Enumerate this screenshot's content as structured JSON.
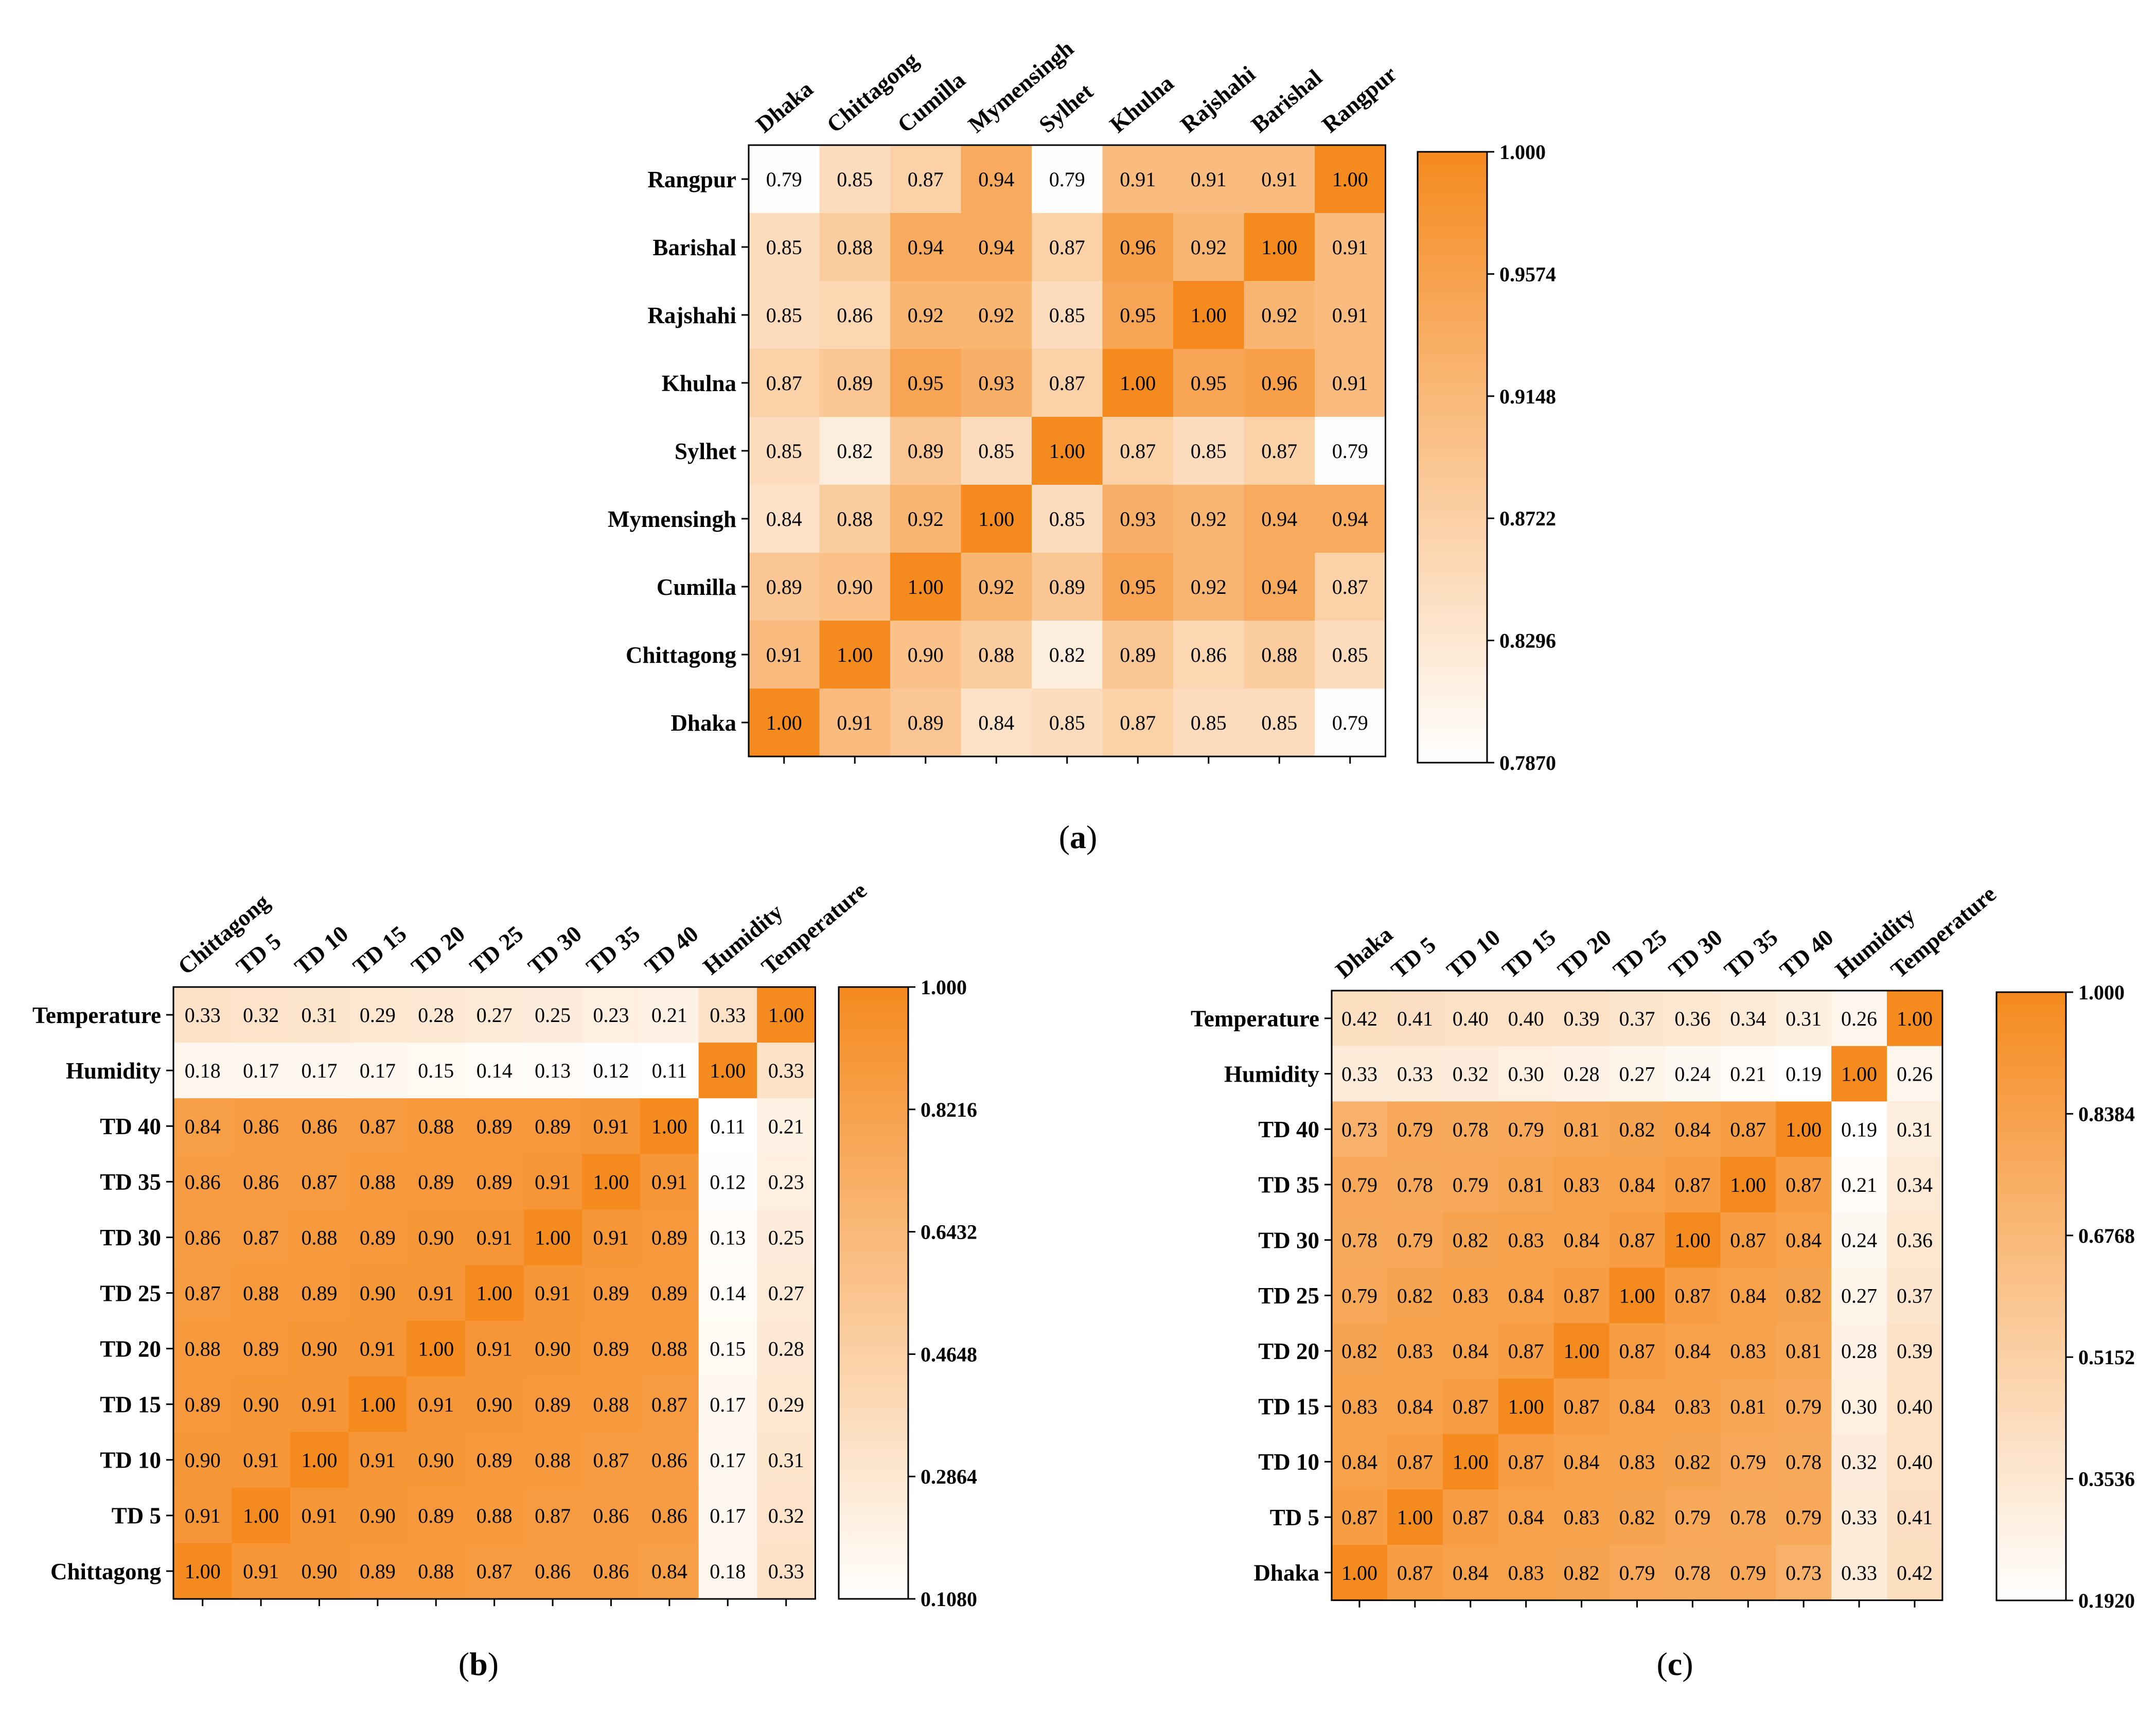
{
  "colors": {
    "low": "#ffffff",
    "high": "#f58a1f",
    "frame": "#000000"
  },
  "chart_data": [
    {
      "type": "heatmap",
      "caption": "a",
      "title": "",
      "columns": [
        "Dhaka",
        "Chittagong",
        "Cumilla",
        "Mymensingh",
        "Sylhet",
        "Khulna",
        "Rajshahi",
        "Barishal",
        "Rangpur"
      ],
      "rows": [
        "Rangpur",
        "Barishal",
        "Rajshahi",
        "Khulna",
        "Sylhet",
        "Mymensingh",
        "Cumilla",
        "Chittagong",
        "Dhaka"
      ],
      "values": [
        [
          0.79,
          0.85,
          0.87,
          0.94,
          0.79,
          0.91,
          0.91,
          0.91,
          1.0
        ],
        [
          0.85,
          0.88,
          0.94,
          0.94,
          0.87,
          0.96,
          0.92,
          1.0,
          0.91
        ],
        [
          0.85,
          0.86,
          0.92,
          0.92,
          0.85,
          0.95,
          1.0,
          0.92,
          0.91
        ],
        [
          0.87,
          0.89,
          0.95,
          0.93,
          0.87,
          1.0,
          0.95,
          0.96,
          0.91
        ],
        [
          0.85,
          0.82,
          0.89,
          0.85,
          1.0,
          0.87,
          0.85,
          0.87,
          0.79
        ],
        [
          0.84,
          0.88,
          0.92,
          1.0,
          0.85,
          0.93,
          0.92,
          0.94,
          0.94
        ],
        [
          0.89,
          0.9,
          1.0,
          0.92,
          0.89,
          0.95,
          0.92,
          0.94,
          0.87
        ],
        [
          0.91,
          1.0,
          0.9,
          0.88,
          0.82,
          0.89,
          0.86,
          0.88,
          0.85
        ],
        [
          1.0,
          0.91,
          0.89,
          0.84,
          0.85,
          0.87,
          0.85,
          0.85,
          0.79
        ]
      ],
      "colorbar": {
        "min": 0.787,
        "max": 1.0,
        "ticks": [
          "1.000",
          "0.9574",
          "0.9148",
          "0.8722",
          "0.8296",
          "0.7870"
        ]
      }
    },
    {
      "type": "heatmap",
      "caption": "b",
      "title": "",
      "columns": [
        "Chittagong",
        "TD 5",
        "TD 10",
        "TD 15",
        "TD 20",
        "TD 25",
        "TD 30",
        "TD 35",
        "TD 40",
        "Humidity",
        "Temperature"
      ],
      "rows": [
        "Temperature",
        "Humidity",
        "TD 40",
        "TD 35",
        "TD 30",
        "TD 25",
        "TD 20",
        "TD 15",
        "TD 10",
        "TD 5",
        "Chittagong"
      ],
      "values": [
        [
          0.33,
          0.32,
          0.31,
          0.29,
          0.28,
          0.27,
          0.25,
          0.23,
          0.21,
          0.33,
          1.0
        ],
        [
          0.18,
          0.17,
          0.17,
          0.17,
          0.15,
          0.14,
          0.13,
          0.12,
          0.11,
          1.0,
          0.33
        ],
        [
          0.84,
          0.86,
          0.86,
          0.87,
          0.88,
          0.89,
          0.89,
          0.91,
          1.0,
          0.11,
          0.21
        ],
        [
          0.86,
          0.86,
          0.87,
          0.88,
          0.89,
          0.89,
          0.91,
          1.0,
          0.91,
          0.12,
          0.23
        ],
        [
          0.86,
          0.87,
          0.88,
          0.89,
          0.9,
          0.91,
          1.0,
          0.91,
          0.89,
          0.13,
          0.25
        ],
        [
          0.87,
          0.88,
          0.89,
          0.9,
          0.91,
          1.0,
          0.91,
          0.89,
          0.89,
          0.14,
          0.27
        ],
        [
          0.88,
          0.89,
          0.9,
          0.91,
          1.0,
          0.91,
          0.9,
          0.89,
          0.88,
          0.15,
          0.28
        ],
        [
          0.89,
          0.9,
          0.91,
          1.0,
          0.91,
          0.9,
          0.89,
          0.88,
          0.87,
          0.17,
          0.29
        ],
        [
          0.9,
          0.91,
          1.0,
          0.91,
          0.9,
          0.89,
          0.88,
          0.87,
          0.86,
          0.17,
          0.31
        ],
        [
          0.91,
          1.0,
          0.91,
          0.9,
          0.89,
          0.88,
          0.87,
          0.86,
          0.86,
          0.17,
          0.32
        ],
        [
          1.0,
          0.91,
          0.9,
          0.89,
          0.88,
          0.87,
          0.86,
          0.86,
          0.84,
          0.18,
          0.33
        ]
      ],
      "colorbar": {
        "min": 0.108,
        "max": 1.0,
        "ticks": [
          "1.000",
          "0.8216",
          "0.6432",
          "0.4648",
          "0.2864",
          "0.1080"
        ]
      }
    },
    {
      "type": "heatmap",
      "caption": "c",
      "title": "",
      "columns": [
        "Dhaka",
        "TD 5",
        "TD 10",
        "TD 15",
        "TD 20",
        "TD 25",
        "TD 30",
        "TD 35",
        "TD 40",
        "Humidity",
        "Temperature"
      ],
      "rows": [
        "Temperature",
        "Humidity",
        "TD 40",
        "TD 35",
        "TD 30",
        "TD 25",
        "TD 20",
        "TD 15",
        "TD 10",
        "TD 5",
        "Dhaka"
      ],
      "values": [
        [
          0.42,
          0.41,
          0.4,
          0.4,
          0.39,
          0.37,
          0.36,
          0.34,
          0.31,
          0.26,
          1.0
        ],
        [
          0.33,
          0.33,
          0.32,
          0.3,
          0.28,
          0.27,
          0.24,
          0.21,
          0.19,
          1.0,
          0.26
        ],
        [
          0.73,
          0.79,
          0.78,
          0.79,
          0.81,
          0.82,
          0.84,
          0.87,
          1.0,
          0.19,
          0.31
        ],
        [
          0.79,
          0.78,
          0.79,
          0.81,
          0.83,
          0.84,
          0.87,
          1.0,
          0.87,
          0.21,
          0.34
        ],
        [
          0.78,
          0.79,
          0.82,
          0.83,
          0.84,
          0.87,
          1.0,
          0.87,
          0.84,
          0.24,
          0.36
        ],
        [
          0.79,
          0.82,
          0.83,
          0.84,
          0.87,
          1.0,
          0.87,
          0.84,
          0.82,
          0.27,
          0.37
        ],
        [
          0.82,
          0.83,
          0.84,
          0.87,
          1.0,
          0.87,
          0.84,
          0.83,
          0.81,
          0.28,
          0.39
        ],
        [
          0.83,
          0.84,
          0.87,
          1.0,
          0.87,
          0.84,
          0.83,
          0.81,
          0.79,
          0.3,
          0.4
        ],
        [
          0.84,
          0.87,
          1.0,
          0.87,
          0.84,
          0.83,
          0.82,
          0.79,
          0.78,
          0.32,
          0.4
        ],
        [
          0.87,
          1.0,
          0.87,
          0.84,
          0.83,
          0.82,
          0.79,
          0.78,
          0.79,
          0.33,
          0.41
        ],
        [
          1.0,
          0.87,
          0.84,
          0.83,
          0.82,
          0.79,
          0.78,
          0.79,
          0.73,
          0.33,
          0.42
        ]
      ],
      "colorbar": {
        "min": 0.192,
        "max": 1.0,
        "ticks": [
          "1.000",
          "0.8384",
          "0.6768",
          "0.5152",
          "0.3536",
          "0.1920"
        ]
      }
    }
  ]
}
